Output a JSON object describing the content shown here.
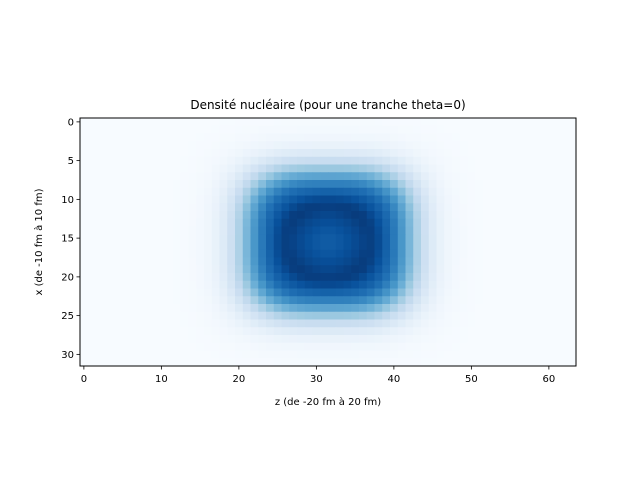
{
  "chart_data": {
    "type": "heatmap",
    "title": "Densité nucléaire (pour une tranche theta=0)",
    "xlabel": "z (de -20 fm à 20 fm)",
    "ylabel": "x (de -10 fm à 10 fm)",
    "x_ticks": [
      0,
      10,
      20,
      30,
      40,
      50,
      60
    ],
    "y_ticks": [
      0,
      5,
      10,
      15,
      20,
      25,
      30
    ],
    "xlim": [
      -0.5,
      63.5
    ],
    "ylim": [
      31.5,
      -0.5
    ],
    "y_inverted": true,
    "grid_size": {
      "cols": 64,
      "rows": 32
    },
    "colormap": "Blues",
    "colormap_stops": [
      "#f7fbff",
      "#deebf7",
      "#c6dbef",
      "#9ecae1",
      "#6baed6",
      "#4292c6",
      "#2171b5",
      "#08519c",
      "#08306b"
    ],
    "density": {
      "center": [
        31.5,
        15.5
      ],
      "semi_axis_x": 10.5,
      "semi_axis_y": 9.0,
      "superellipse_exponent": 3.2,
      "edge_width": 1.4,
      "peak_level": 0.93,
      "inner_dip_center": 0.1,
      "inner_ring": 0.06,
      "range": [
        0,
        1
      ]
    }
  }
}
